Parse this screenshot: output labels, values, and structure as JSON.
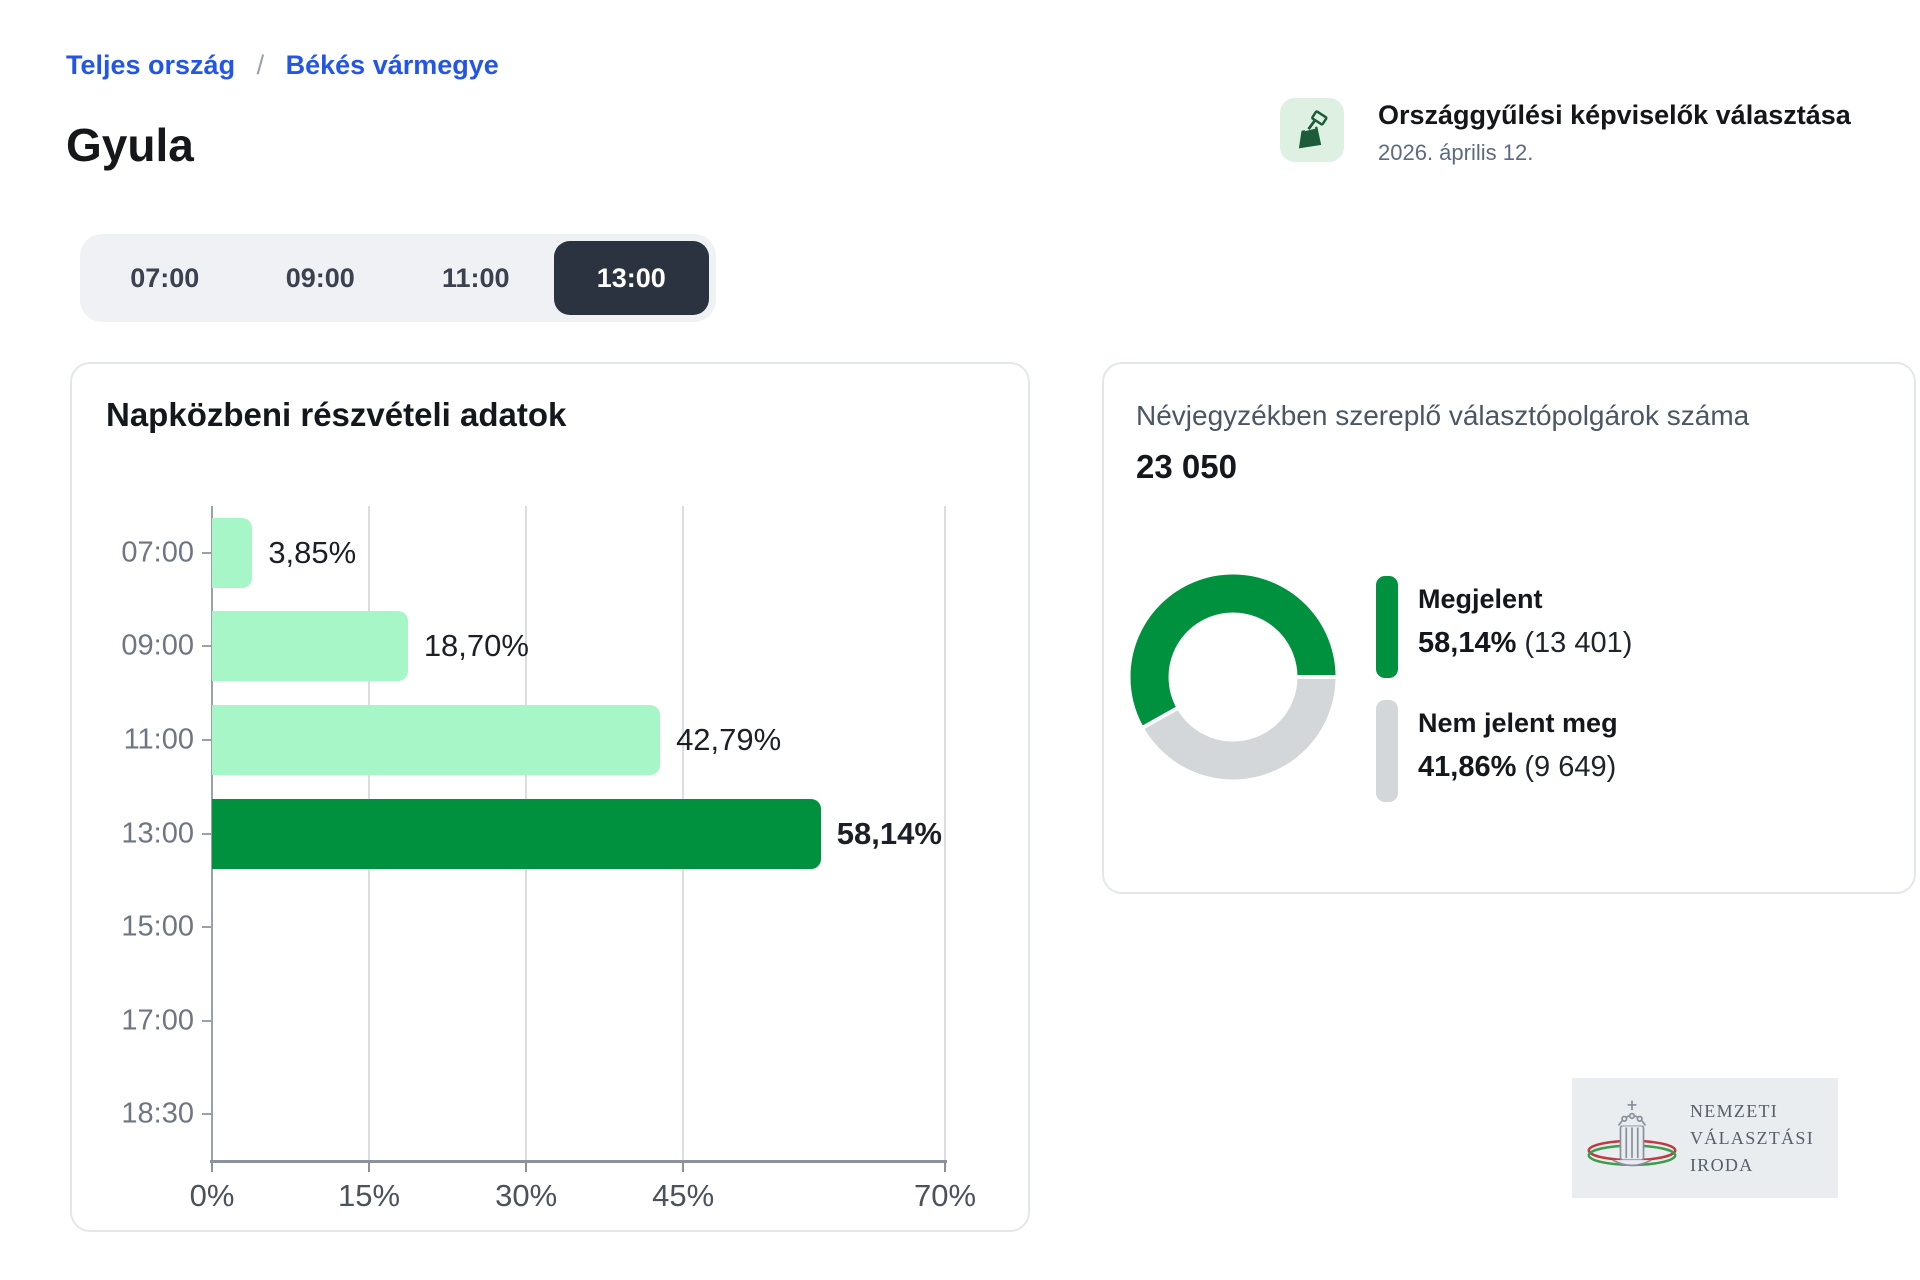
{
  "breadcrumb": {
    "items": [
      "Teljes ország",
      "Békés vármegye"
    ],
    "separator": "/"
  },
  "page": {
    "title": "Gyula"
  },
  "election": {
    "name": "Országgyűlési képviselők választása",
    "date": "2026. április 12.",
    "icon": "ballot-box-icon"
  },
  "tabs": {
    "items": [
      "07:00",
      "09:00",
      "11:00",
      "13:00"
    ],
    "active": "13:00"
  },
  "chart_data": [
    {
      "type": "bar",
      "orientation": "horizontal",
      "title": "Napközbeni részvételi adatok",
      "categories": [
        "07:00",
        "09:00",
        "11:00",
        "13:00",
        "15:00",
        "17:00",
        "18:30"
      ],
      "values": [
        3.85,
        18.7,
        42.79,
        58.14,
        null,
        null,
        null
      ],
      "value_labels": [
        "3,85%",
        "18,70%",
        "42,79%",
        "58,14%",
        "",
        "",
        ""
      ],
      "highlight_category": "13:00",
      "xlim": [
        0,
        70
      ],
      "tick_values": [
        0,
        15,
        30,
        45,
        70
      ],
      "xlabel_ticks": [
        "0%",
        "15%",
        "30%",
        "45%",
        "70%"
      ],
      "grid": true,
      "colors": {
        "bar": "#a7f6c7",
        "highlight": "#00913f"
      }
    },
    {
      "type": "pie",
      "subtype": "donut",
      "title": "Névjegyzékben szereplő választópolgárok száma",
      "total": "23 050",
      "legend_position": "right",
      "slices": [
        {
          "label": "Megjelent",
          "pct": 58.14,
          "pct_label": "58,14%",
          "count_label": "(13 401)",
          "color": "#00913f"
        },
        {
          "label": "Nem jelent meg",
          "pct": 41.86,
          "pct_label": "41,86%",
          "count_label": "(9 649)",
          "color": "#d3d7da"
        }
      ]
    }
  ],
  "logo": {
    "icon": "parliament-crown-emblem",
    "lines": [
      "NEMZETI",
      "VÁLASZTÁSI",
      "IRODA"
    ]
  },
  "colors": {
    "link_blue": "#2356e8",
    "dark_green": "#00913f",
    "light_green": "#a7f6c7",
    "donut_gray": "#d3d7da",
    "tab_active_bg": "#2c3340",
    "icon_bg": "#ddf0e2",
    "icon_glyph": "#1d5c38"
  }
}
